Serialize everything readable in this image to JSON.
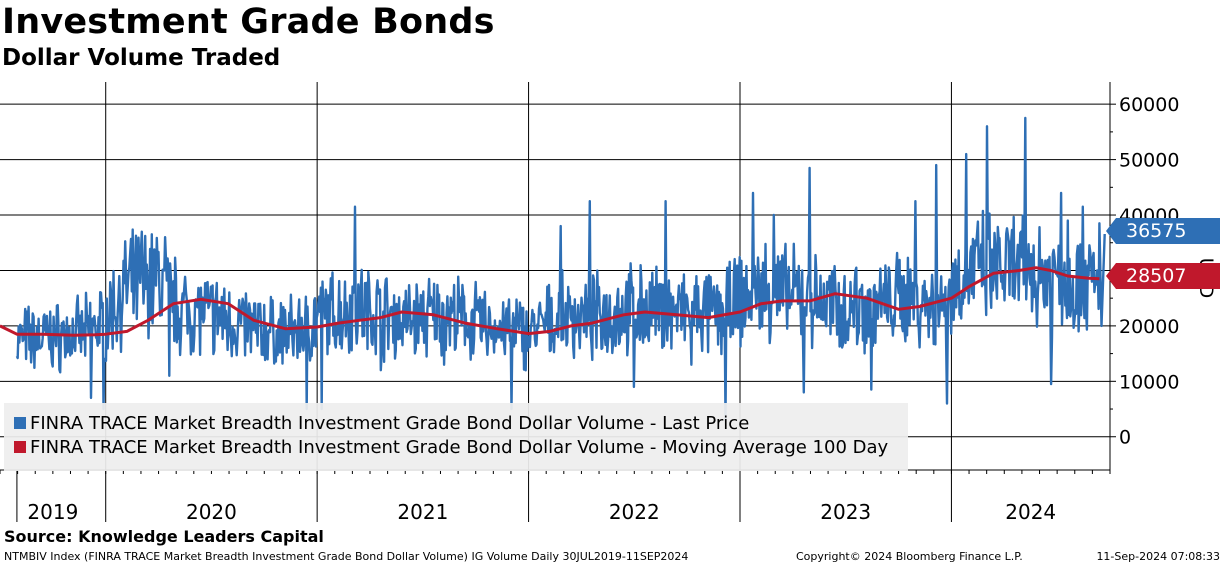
{
  "title": "Investment Grade Bonds",
  "subtitle": "Dollar Volume Traded",
  "source": "Source: Knowledge Leaders Capital",
  "footer": {
    "left": "NTMBIV Index (FINRA TRACE Market Breadth Investment Grade Bond Dollar Volume) IG Volume  Daily 30JUL2019-11SEP2024",
    "middle": "Copyright© 2024 Bloomberg Finance L.P.",
    "right": "11-Sep-2024 07:08:33"
  },
  "colors": {
    "last": "#2e6fb5",
    "ma": "#c0182c"
  },
  "chart_data": {
    "type": "line",
    "title": "Investment Grade Bonds",
    "subtitle": "Dollar Volume Traded",
    "ylabel": "USD",
    "ylim": [
      -6000,
      64000
    ],
    "yticks": [
      0,
      10000,
      20000,
      30000,
      40000,
      50000,
      60000
    ],
    "ytick_labels": [
      "0",
      "10000",
      "20000",
      "30000",
      "40000",
      "50000",
      "60000"
    ],
    "xrange": [
      2019.5,
      2024.75
    ],
    "year_ticks": [
      2019.58,
      2020,
      2021,
      2022,
      2023,
      2024
    ],
    "year_labels": [
      "2019",
      "2020",
      "2021",
      "2022",
      "2023",
      "2024"
    ],
    "legend_position": "bottom-left",
    "last_price_label": "36575",
    "ma_label": "28507",
    "series": [
      {
        "name": "FINRA TRACE Market Breadth Investment Grade Bond Dollar Volume - Last Price",
        "color": "#2e6fb5",
        "last_value": 36575,
        "baseline": [
          [
            2019.58,
            17500
          ],
          [
            2019.75,
            18000
          ],
          [
            2019.9,
            18500
          ],
          [
            2020.0,
            21000
          ],
          [
            2020.1,
            27000
          ],
          [
            2020.25,
            28500
          ],
          [
            2020.35,
            23000
          ],
          [
            2020.5,
            22000
          ],
          [
            2020.7,
            19500
          ],
          [
            2020.85,
            18500
          ],
          [
            2020.97,
            20000
          ],
          [
            2021.0,
            21500
          ],
          [
            2021.2,
            23500
          ],
          [
            2021.4,
            21000
          ],
          [
            2021.6,
            22000
          ],
          [
            2021.8,
            20000
          ],
          [
            2021.97,
            19000
          ],
          [
            2022.0,
            18500
          ],
          [
            2022.15,
            21500
          ],
          [
            2022.3,
            21500
          ],
          [
            2022.5,
            23000
          ],
          [
            2022.7,
            22500
          ],
          [
            2022.9,
            22000
          ],
          [
            2023.0,
            24500
          ],
          [
            2023.1,
            26500
          ],
          [
            2023.3,
            25000
          ],
          [
            2023.5,
            23000
          ],
          [
            2023.7,
            24000
          ],
          [
            2023.8,
            25500
          ],
          [
            2023.95,
            23000
          ],
          [
            2024.0,
            27000
          ],
          [
            2024.1,
            30000
          ],
          [
            2024.3,
            30000
          ],
          [
            2024.5,
            29000
          ],
          [
            2024.7,
            27500
          ]
        ],
        "spikes": [
          [
            2019.93,
            7000
          ],
          [
            2019.99,
            5000
          ],
          [
            2020.17,
            37000
          ],
          [
            2020.28,
            36000
          ],
          [
            2020.95,
            5000
          ],
          [
            2021.02,
            5000
          ],
          [
            2021.18,
            41500
          ],
          [
            2021.92,
            5000
          ],
          [
            2022.15,
            38000
          ],
          [
            2022.29,
            42500
          ],
          [
            2022.65,
            42500
          ],
          [
            2022.93,
            3000
          ],
          [
            2023.06,
            44000
          ],
          [
            2023.16,
            40000
          ],
          [
            2023.33,
            48500
          ],
          [
            2023.55,
            30500
          ],
          [
            2023.62,
            40000
          ],
          [
            2023.83,
            42500
          ],
          [
            2023.93,
            49000
          ],
          [
            2023.98,
            6000
          ],
          [
            2024.07,
            51000
          ],
          [
            2024.17,
            56000
          ],
          [
            2024.35,
            57500
          ],
          [
            2024.47,
            9500
          ],
          [
            2024.52,
            44000
          ],
          [
            2024.55,
            39000
          ],
          [
            2024.62,
            41500
          ],
          [
            2024.75,
            38500
          ]
        ],
        "dips": [
          [
            2020.3,
            11000
          ],
          [
            2021.3,
            12000
          ],
          [
            2021.6,
            13000
          ],
          [
            2022.5,
            9000
          ],
          [
            2022.77,
            13000
          ],
          [
            2023.3,
            8000
          ],
          [
            2023.62,
            8500
          ],
          [
            2024.6,
            19000
          ]
        ]
      },
      {
        "name": "FINRA TRACE Market Breadth Investment Grade Bond Dollar Volume - Moving Average 100 Day",
        "color": "#c0182c",
        "last_value": 28507,
        "points": [
          [
            2019.5,
            20000
          ],
          [
            2019.58,
            18500
          ],
          [
            2019.7,
            18500
          ],
          [
            2019.85,
            18300
          ],
          [
            2019.95,
            18400
          ],
          [
            2020.0,
            18500
          ],
          [
            2020.1,
            19000
          ],
          [
            2020.2,
            21000
          ],
          [
            2020.32,
            24000
          ],
          [
            2020.45,
            24800
          ],
          [
            2020.58,
            24000
          ],
          [
            2020.7,
            21000
          ],
          [
            2020.85,
            19500
          ],
          [
            2021.0,
            19800
          ],
          [
            2021.1,
            20500
          ],
          [
            2021.2,
            21000
          ],
          [
            2021.3,
            21500
          ],
          [
            2021.4,
            22500
          ],
          [
            2021.55,
            22000
          ],
          [
            2021.7,
            20500
          ],
          [
            2021.85,
            19500
          ],
          [
            2022.0,
            18600
          ],
          [
            2022.1,
            19000
          ],
          [
            2022.2,
            20000
          ],
          [
            2022.3,
            20500
          ],
          [
            2022.45,
            22000
          ],
          [
            2022.55,
            22500
          ],
          [
            2022.7,
            22000
          ],
          [
            2022.85,
            21500
          ],
          [
            2023.0,
            22500
          ],
          [
            2023.1,
            24000
          ],
          [
            2023.2,
            24500
          ],
          [
            2023.33,
            24500
          ],
          [
            2023.45,
            25800
          ],
          [
            2023.6,
            25000
          ],
          [
            2023.75,
            23000
          ],
          [
            2023.85,
            23500
          ],
          [
            2023.95,
            24500
          ],
          [
            2024.0,
            25000
          ],
          [
            2024.08,
            27000
          ],
          [
            2024.2,
            29500
          ],
          [
            2024.32,
            30000
          ],
          [
            2024.4,
            30500
          ],
          [
            2024.47,
            30000
          ],
          [
            2024.55,
            29000
          ],
          [
            2024.65,
            28600
          ],
          [
            2024.7,
            28507
          ]
        ]
      }
    ]
  }
}
